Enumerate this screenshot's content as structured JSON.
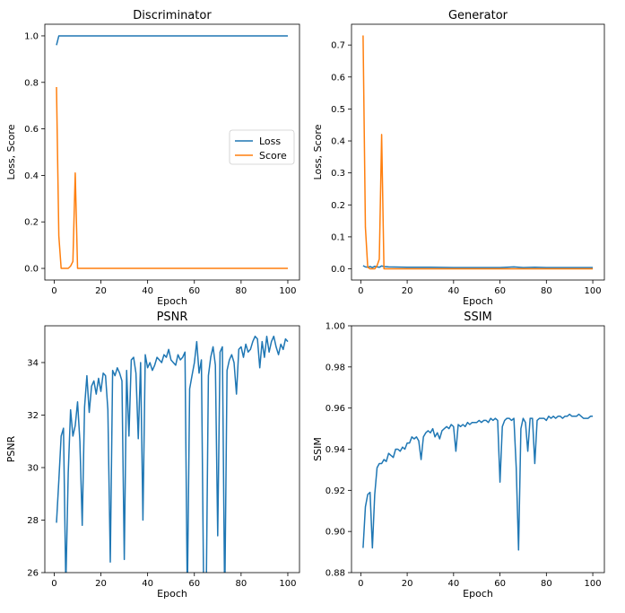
{
  "colors": {
    "blue": "#1f77b4",
    "orange": "#ff7f0e"
  },
  "chart_data": [
    {
      "type": "line",
      "title": "Discriminator",
      "xlabel": "Epoch",
      "ylabel": "Loss, Score",
      "xlim": [
        -4,
        105
      ],
      "ylim": [
        -0.05,
        1.05
      ],
      "xticks": [
        0,
        20,
        40,
        60,
        80,
        100
      ],
      "yticks": [
        0.0,
        0.2,
        0.4,
        0.6,
        0.8,
        1.0
      ],
      "ytick_labels": [
        "0.0",
        "0.2",
        "0.4",
        "0.6",
        "0.8",
        "1.0"
      ],
      "legend": "center-right",
      "series": [
        {
          "name": "Loss",
          "color": "#1f77b4",
          "x": [
            1,
            2,
            4,
            6,
            8,
            10,
            15,
            20,
            40,
            60,
            80,
            100
          ],
          "y": [
            0.96,
            1.0,
            1.0,
            1.0,
            1.0,
            1.0,
            1.0,
            1.0,
            1.0,
            1.0,
            1.0,
            1.0
          ]
        },
        {
          "name": "Score",
          "color": "#ff7f0e",
          "x": [
            1,
            2,
            3,
            4,
            5,
            6,
            7,
            8,
            9,
            10,
            11,
            20,
            40,
            60,
            80,
            100
          ],
          "y": [
            0.78,
            0.14,
            0.0,
            0.0,
            0.0,
            0.0,
            0.01,
            0.03,
            0.41,
            0.0,
            0.0,
            0.0,
            0.0,
            0.0,
            0.0,
            0.0
          ]
        }
      ]
    },
    {
      "type": "line",
      "title": "Generator",
      "xlabel": "Epoch",
      "ylabel": "Loss, Score",
      "xlim": [
        -4,
        105
      ],
      "ylim": [
        -0.035,
        0.765
      ],
      "xticks": [
        0,
        20,
        40,
        60,
        80,
        100
      ],
      "yticks": [
        0.0,
        0.1,
        0.2,
        0.3,
        0.4,
        0.5,
        0.6,
        0.7
      ],
      "ytick_labels": [
        "0.0",
        "0.1",
        "0.2",
        "0.3",
        "0.4",
        "0.5",
        "0.6",
        "0.7"
      ],
      "series": [
        {
          "name": "Loss",
          "color": "#1f77b4",
          "x": [
            1,
            2,
            3,
            4,
            5,
            6,
            7,
            8,
            9,
            10,
            12,
            20,
            30,
            40,
            50,
            60,
            66,
            70,
            75,
            80,
            90,
            100
          ],
          "y": [
            0.01,
            0.006,
            0.005,
            0.007,
            0.004,
            0.008,
            0.006,
            0.005,
            0.009,
            0.007,
            0.006,
            0.005,
            0.005,
            0.004,
            0.004,
            0.004,
            0.006,
            0.004,
            0.005,
            0.004,
            0.004,
            0.004
          ]
        },
        {
          "name": "Score",
          "color": "#ff7f0e",
          "x": [
            1,
            2,
            3,
            4,
            5,
            6,
            7,
            8,
            9,
            10,
            11,
            20,
            40,
            60,
            80,
            100
          ],
          "y": [
            0.73,
            0.13,
            0.005,
            0.0,
            0.0,
            0.0,
            0.01,
            0.03,
            0.42,
            0.0,
            0.0,
            0.0,
            0.0,
            0.0,
            0.0,
            0.0
          ]
        }
      ]
    },
    {
      "type": "line",
      "title": "PSNR",
      "xlabel": "Epoch",
      "ylabel": "PSNR",
      "xlim": [
        -4,
        105
      ],
      "ylim": [
        26,
        35.4
      ],
      "xticks": [
        0,
        20,
        40,
        60,
        80,
        100
      ],
      "yticks": [
        26,
        28,
        30,
        32,
        34
      ],
      "ytick_labels": [
        "26",
        "28",
        "30",
        "32",
        "34"
      ],
      "series": [
        {
          "name": "PSNR",
          "color": "#1f77b4",
          "x": [
            1,
            2,
            3,
            4,
            5,
            6,
            7,
            8,
            9,
            10,
            11,
            12,
            13,
            14,
            15,
            16,
            17,
            18,
            19,
            20,
            21,
            22,
            23,
            24,
            25,
            26,
            27,
            28,
            29,
            30,
            31,
            32,
            33,
            34,
            35,
            36,
            37,
            38,
            39,
            40,
            41,
            42,
            43,
            44,
            45,
            46,
            47,
            48,
            49,
            50,
            51,
            52,
            53,
            54,
            55,
            56,
            57,
            58,
            59,
            60,
            61,
            62,
            63,
            64,
            65,
            66,
            67,
            68,
            69,
            70,
            71,
            72,
            73,
            74,
            75,
            76,
            77,
            78,
            79,
            80,
            81,
            82,
            83,
            84,
            85,
            86,
            87,
            88,
            89,
            90,
            91,
            92,
            93,
            94,
            95,
            96,
            97,
            98,
            99,
            100
          ],
          "y": [
            27.9,
            29.5,
            31.2,
            31.5,
            25.5,
            29.8,
            32.2,
            31.2,
            31.6,
            32.5,
            31.0,
            27.8,
            32.3,
            33.5,
            32.1,
            33.1,
            33.3,
            32.8,
            33.4,
            32.9,
            33.6,
            33.5,
            32.2,
            26.4,
            33.7,
            33.5,
            33.8,
            33.6,
            33.3,
            26.5,
            33.7,
            31.2,
            34.1,
            34.2,
            33.6,
            31.1,
            34.0,
            28.0,
            34.3,
            33.8,
            34.0,
            33.7,
            33.9,
            34.2,
            34.1,
            34.0,
            34.3,
            34.2,
            34.5,
            34.1,
            34.0,
            33.9,
            34.3,
            34.1,
            34.2,
            34.4,
            25.0,
            33.0,
            33.5,
            34.0,
            34.8,
            33.6,
            34.1,
            25.0,
            24.5,
            33.5,
            34.2,
            34.6,
            33.9,
            27.4,
            34.4,
            34.6,
            24.8,
            33.7,
            34.1,
            34.3,
            34.0,
            32.8,
            34.5,
            34.6,
            34.2,
            34.7,
            34.4,
            34.5,
            34.8,
            35.0,
            34.9,
            33.8,
            34.8,
            34.2,
            35.0,
            34.4,
            34.8,
            35.0,
            34.6,
            34.3,
            34.7,
            34.5,
            34.9,
            34.8
          ]
        }
      ]
    },
    {
      "type": "line",
      "title": "SSIM",
      "xlabel": "Epoch",
      "ylabel": "SSIM",
      "xlim": [
        -4,
        105
      ],
      "ylim": [
        0.88,
        1.0
      ],
      "xticks": [
        0,
        20,
        40,
        60,
        80,
        100
      ],
      "yticks": [
        0.88,
        0.9,
        0.92,
        0.94,
        0.96,
        0.98,
        1.0
      ],
      "ytick_labels": [
        "0.88",
        "0.90",
        "0.92",
        "0.94",
        "0.96",
        "0.98",
        "1.00"
      ],
      "series": [
        {
          "name": "SSIM",
          "color": "#1f77b4",
          "x": [
            1,
            2,
            3,
            4,
            5,
            6,
            7,
            8,
            9,
            10,
            11,
            12,
            13,
            14,
            15,
            16,
            17,
            18,
            19,
            20,
            21,
            22,
            23,
            24,
            25,
            26,
            27,
            28,
            29,
            30,
            31,
            32,
            33,
            34,
            35,
            36,
            37,
            38,
            39,
            40,
            41,
            42,
            43,
            44,
            45,
            46,
            47,
            48,
            49,
            50,
            51,
            52,
            53,
            54,
            55,
            56,
            57,
            58,
            59,
            60,
            61,
            62,
            63,
            64,
            65,
            66,
            67,
            68,
            69,
            70,
            71,
            72,
            73,
            74,
            75,
            76,
            77,
            78,
            79,
            80,
            81,
            82,
            83,
            84,
            85,
            86,
            87,
            88,
            89,
            90,
            91,
            92,
            93,
            94,
            95,
            96,
            97,
            98,
            99,
            100
          ],
          "y": [
            0.892,
            0.912,
            0.918,
            0.919,
            0.892,
            0.918,
            0.931,
            0.933,
            0.933,
            0.935,
            0.934,
            0.938,
            0.937,
            0.936,
            0.94,
            0.94,
            0.939,
            0.941,
            0.94,
            0.943,
            0.943,
            0.946,
            0.945,
            0.946,
            0.944,
            0.935,
            0.946,
            0.948,
            0.949,
            0.948,
            0.95,
            0.946,
            0.948,
            0.945,
            0.949,
            0.95,
            0.951,
            0.95,
            0.952,
            0.951,
            0.939,
            0.952,
            0.951,
            0.952,
            0.951,
            0.953,
            0.952,
            0.953,
            0.953,
            0.953,
            0.954,
            0.953,
            0.954,
            0.954,
            0.953,
            0.955,
            0.954,
            0.955,
            0.954,
            0.924,
            0.951,
            0.954,
            0.955,
            0.955,
            0.954,
            0.955,
            0.931,
            0.891,
            0.95,
            0.955,
            0.953,
            0.939,
            0.955,
            0.955,
            0.933,
            0.954,
            0.955,
            0.955,
            0.955,
            0.954,
            0.956,
            0.955,
            0.956,
            0.955,
            0.956,
            0.956,
            0.955,
            0.956,
            0.956,
            0.957,
            0.956,
            0.956,
            0.956,
            0.957,
            0.956,
            0.955,
            0.955,
            0.955,
            0.956,
            0.956
          ]
        }
      ]
    }
  ]
}
